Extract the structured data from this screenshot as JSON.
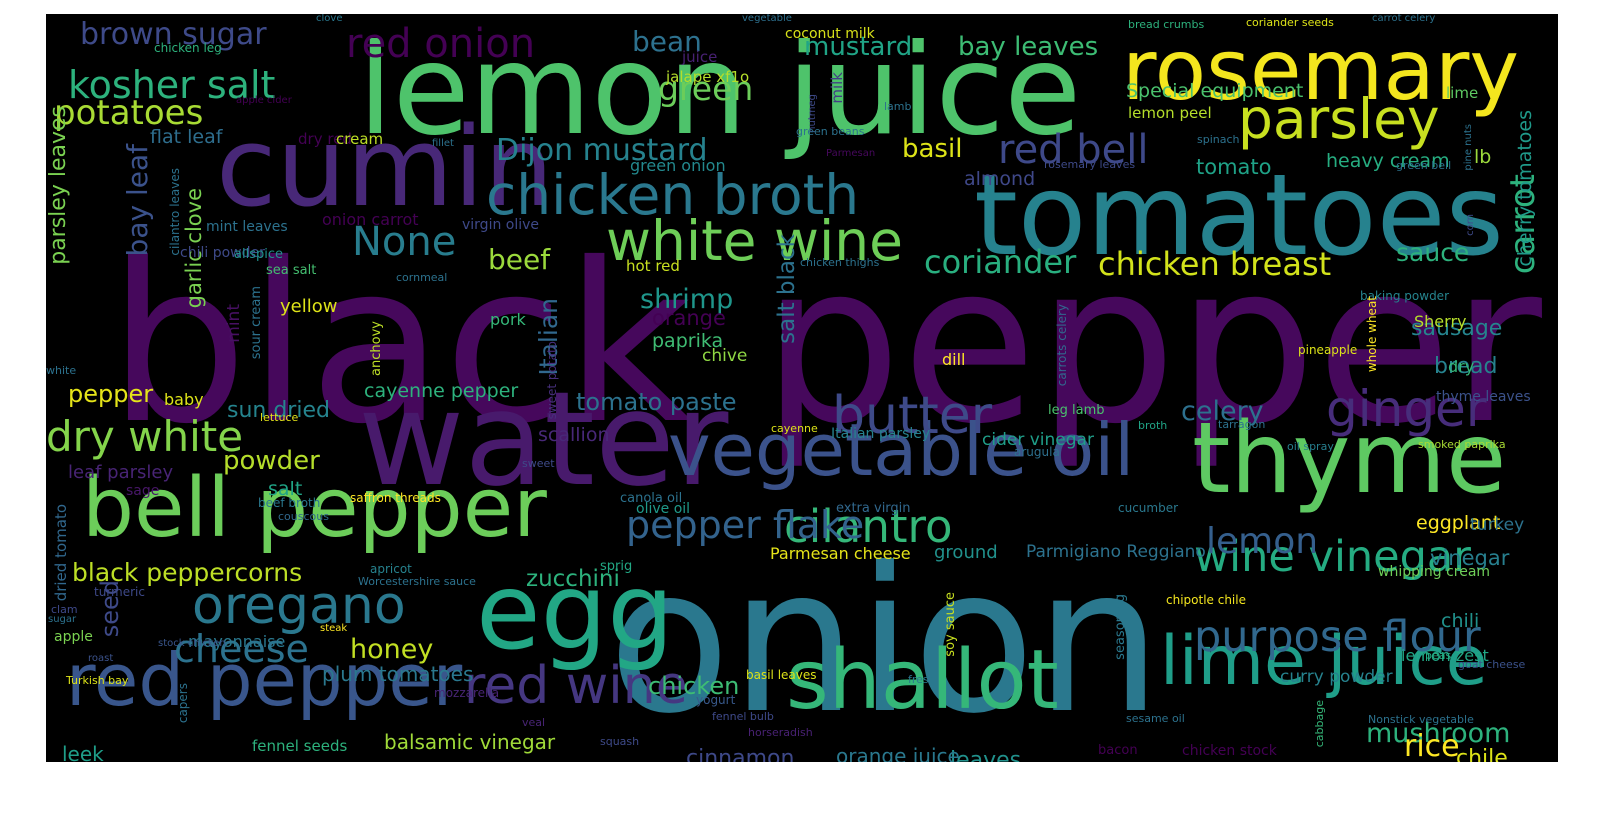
{
  "words": [
    {
      "text": "black pepper",
      "color": "#46085c",
      "vertical": false
    },
    {
      "text": "onion",
      "color": "#2a788e",
      "vertical": false
    },
    {
      "text": "water",
      "color": "#481a6c",
      "vertical": false
    },
    {
      "text": "lemon juice",
      "color": "#4ec36b",
      "vertical": false
    },
    {
      "text": "tomatoes",
      "color": "#26828e",
      "vertical": false
    },
    {
      "text": "cumin",
      "color": "#482878",
      "vertical": false
    },
    {
      "text": "egg",
      "color": "#22a785",
      "vertical": false
    },
    {
      "text": "thyme",
      "color": "#5ec962",
      "vertical": false
    },
    {
      "text": "rosemary",
      "color": "#f4e61e",
      "vertical": false
    },
    {
      "text": "bell pepper",
      "color": "#6ccd5a",
      "vertical": false
    },
    {
      "text": "shallot",
      "color": "#35b779",
      "vertical": false
    },
    {
      "text": "vegetable oil",
      "color": "#3b528b",
      "vertical": false
    },
    {
      "text": "red pepper",
      "color": "#39568c",
      "vertical": false
    },
    {
      "text": "lime juice",
      "color": "#1f9e89",
      "vertical": false
    },
    {
      "text": "chicken broth",
      "color": "#2a788e",
      "vertical": false
    },
    {
      "text": "white wine",
      "color": "#6ece58",
      "vertical": false
    },
    {
      "text": "parsley",
      "color": "#c8e020",
      "vertical": false
    },
    {
      "text": "red wine",
      "color": "#453781",
      "vertical": false
    },
    {
      "text": "oregano",
      "color": "#2a788e",
      "vertical": false
    },
    {
      "text": "butter",
      "color": "#3e4a89",
      "vertical": false
    },
    {
      "text": "ginger",
      "color": "#472d7b",
      "vertical": false
    },
    {
      "text": "cilantro",
      "color": "#35b779",
      "vertical": false
    },
    {
      "text": "purpose flour",
      "color": "#31688e",
      "vertical": false
    },
    {
      "text": "wine vinegar",
      "color": "#25ac82",
      "vertical": false
    },
    {
      "text": "dry white",
      "color": "#84d44b",
      "vertical": false
    },
    {
      "text": "red bell",
      "color": "#3e4989",
      "vertical": false
    },
    {
      "text": "red onion",
      "color": "#440154",
      "vertical": false
    },
    {
      "text": "kosher salt",
      "color": "#2db27d",
      "vertical": false
    },
    {
      "text": "cheese",
      "color": "#2c728e",
      "vertical": false
    },
    {
      "text": "pepper flake",
      "color": "#33638d",
      "vertical": false
    },
    {
      "text": "lemon",
      "color": "#355f8d",
      "vertical": false
    },
    {
      "text": "Dijon mustard",
      "color": "#26828e",
      "vertical": false
    },
    {
      "text": "None",
      "color": "#287d8e",
      "vertical": false
    },
    {
      "text": "coriander",
      "color": "#29af7f",
      "vertical": false
    },
    {
      "text": "chicken breast",
      "color": "#d2e21b",
      "vertical": false
    },
    {
      "text": "potatoes",
      "color": "#a8db34",
      "vertical": false
    },
    {
      "text": "green",
      "color": "#6ccd5a",
      "vertical": false
    },
    {
      "text": "carrot",
      "color": "#2db27d",
      "vertical": true
    },
    {
      "text": "black peppercorns",
      "color": "#bddf26",
      "vertical": false
    },
    {
      "text": "mushroom",
      "color": "#2db27d",
      "vertical": false
    },
    {
      "text": "shrimp",
      "color": "#1f968b",
      "vertical": false
    },
    {
      "text": "brown sugar",
      "color": "#3e4a89",
      "vertical": false
    },
    {
      "text": "bay leaf",
      "color": "#3b528b",
      "vertical": true
    },
    {
      "text": "rice",
      "color": "#fde725",
      "vertical": false
    },
    {
      "text": "honey",
      "color": "#c2df23",
      "vertical": false
    },
    {
      "text": "mustard",
      "color": "#20a486",
      "vertical": false
    },
    {
      "text": "bay leaves",
      "color": "#3dbc74",
      "vertical": false
    },
    {
      "text": "bean",
      "color": "#2d718e",
      "vertical": false
    },
    {
      "text": "celery",
      "color": "#2d708e",
      "vertical": false
    },
    {
      "text": "powder",
      "color": "#b5de2b",
      "vertical": false
    },
    {
      "text": "beef",
      "color": "#9bd93c",
      "vertical": false
    },
    {
      "text": "sauce",
      "color": "#2db27d",
      "vertical": false
    },
    {
      "text": "seed",
      "color": "#3e4a89",
      "vertical": true
    },
    {
      "text": "cinnamon",
      "color": "#3e4989",
      "vertical": false
    },
    {
      "text": "chicken",
      "color": "#3dbc74",
      "vertical": false
    },
    {
      "text": "tomato paste",
      "color": "#2c728e",
      "vertical": false
    },
    {
      "text": "zucchini",
      "color": "#2db27d",
      "vertical": false
    },
    {
      "text": "salt black",
      "color": "#2c728e",
      "vertical": true
    },
    {
      "text": "sausage",
      "color": "#25848e",
      "vertical": false
    },
    {
      "text": "basil",
      "color": "#dde318",
      "vertical": false
    },
    {
      "text": "pepper",
      "color": "#e5e419",
      "vertical": false
    },
    {
      "text": "leaves",
      "color": "#21918c",
      "vertical": false
    },
    {
      "text": "chile",
      "color": "#dde318",
      "vertical": false
    },
    {
      "text": "balsamic vinegar",
      "color": "#a0da39",
      "vertical": false
    },
    {
      "text": "Special equipment",
      "color": "#4ac16d",
      "vertical": false
    },
    {
      "text": "heavy cream",
      "color": "#26ad81",
      "vertical": false
    },
    {
      "text": "tomato",
      "color": "#1fa287",
      "vertical": false
    },
    {
      "text": "cherry tomatoes",
      "color": "#1f9a8a",
      "vertical": true
    },
    {
      "text": "vinegar",
      "color": "#277f8e",
      "vertical": false
    },
    {
      "text": "bread",
      "color": "#26828e",
      "vertical": false
    },
    {
      "text": "sun dried",
      "color": "#25848e",
      "vertical": false
    },
    {
      "text": "cayenne pepper",
      "color": "#2db27d",
      "vertical": false
    },
    {
      "text": "lb",
      "color": "#9bd93c",
      "vertical": false
    },
    {
      "text": "paprika",
      "color": "#3fbc73",
      "vertical": false
    },
    {
      "text": "Italian",
      "color": "#31688e",
      "vertical": true
    },
    {
      "text": "orange juice",
      "color": "#2a788e",
      "vertical": false
    },
    {
      "text": "plum tomatoes",
      "color": "#2a788e",
      "vertical": false
    },
    {
      "text": "parsley leaves",
      "color": "#7ad151",
      "vertical": true
    },
    {
      "text": "leek",
      "color": "#1f9e89",
      "vertical": false
    },
    {
      "text": "garlic clove",
      "color": "#7ad151",
      "vertical": true
    },
    {
      "text": "orange",
      "color": "#440154",
      "vertical": false
    },
    {
      "text": "eggplant",
      "color": "#fde725",
      "vertical": false
    },
    {
      "text": "leaf parsley",
      "color": "#482475",
      "vertical": false
    },
    {
      "text": "flat leaf",
      "color": "#2e6e8e",
      "vertical": false
    },
    {
      "text": "pork",
      "color": "#35b779",
      "vertical": false
    },
    {
      "text": "chili",
      "color": "#21918c",
      "vertical": false
    },
    {
      "text": "salt",
      "color": "#20a486",
      "vertical": false
    },
    {
      "text": "scallion",
      "color": "#482878",
      "vertical": false
    },
    {
      "text": "almond",
      "color": "#3f4889",
      "vertical": false
    },
    {
      "text": "yellow",
      "color": "#dde318",
      "vertical": false
    },
    {
      "text": "chive",
      "color": "#8fd744",
      "vertical": false
    },
    {
      "text": "mayonnaise",
      "color": "#2a788e",
      "vertical": false
    },
    {
      "text": "curry powder",
      "color": "#26828e",
      "vertical": false
    },
    {
      "text": "lemon zest",
      "color": "#21a685",
      "vertical": false
    },
    {
      "text": "cider vinegar",
      "color": "#1f9e89",
      "vertical": false
    },
    {
      "text": "turkey",
      "color": "#2c728e",
      "vertical": false
    },
    {
      "text": "ground",
      "color": "#21918c",
      "vertical": false
    },
    {
      "text": "Parmigiano Reggiano",
      "color": "#2c728e",
      "vertical": false
    },
    {
      "text": "Parmesan cheese",
      "color": "#e5e419",
      "vertical": false
    },
    {
      "text": "green onion",
      "color": "#23898e",
      "vertical": false
    },
    {
      "text": "dill",
      "color": "#fde725",
      "vertical": false
    },
    {
      "text": "lemon peel",
      "color": "#b5de2b",
      "vertical": false
    },
    {
      "text": "lime",
      "color": "#5ec962",
      "vertical": false
    },
    {
      "text": "Sherry",
      "color": "#b5de2b",
      "vertical": false
    },
    {
      "text": "dry",
      "color": "#35b779",
      "vertical": false
    },
    {
      "text": "thyme leaves",
      "color": "#3b528b",
      "vertical": false
    },
    {
      "text": "coconut milk",
      "color": "#d8e219",
      "vertical": false
    },
    {
      "text": "juice",
      "color": "#482173",
      "vertical": false
    },
    {
      "text": "jalape xf1o",
      "color": "#b5de2b",
      "vertical": false
    },
    {
      "text": "milk",
      "color": "#433e85",
      "vertical": true
    },
    {
      "text": "dry red",
      "color": "#440154",
      "vertical": false
    },
    {
      "text": "cream",
      "color": "#bddf26",
      "vertical": false
    },
    {
      "text": "onion carrot",
      "color": "#440154",
      "vertical": false
    },
    {
      "text": "hot red",
      "color": "#c8e020",
      "vertical": false
    },
    {
      "text": "mint",
      "color": "#471063",
      "vertical": true
    },
    {
      "text": "baby",
      "color": "#dde318",
      "vertical": false
    },
    {
      "text": "sage",
      "color": "#481769",
      "vertical": false
    },
    {
      "text": "mint leaves",
      "color": "#2c728e",
      "vertical": false
    },
    {
      "text": "cilantro leaves",
      "color": "#2c728e",
      "vertical": true
    },
    {
      "text": "chili powder",
      "color": "#3e4a89",
      "vertical": false
    },
    {
      "text": "virgin olive",
      "color": "#3e4989",
      "vertical": false
    },
    {
      "text": "allspice",
      "color": "#21918c",
      "vertical": false
    },
    {
      "text": "sea salt",
      "color": "#44bf70",
      "vertical": false
    },
    {
      "text": "cornmeal",
      "color": "#2c728e",
      "vertical": false
    },
    {
      "text": "sour cream",
      "color": "#2c728e",
      "vertical": true
    },
    {
      "text": "anchovy",
      "color": "#bddf26",
      "vertical": true
    },
    {
      "text": "sweet potato",
      "color": "#472f7d",
      "vertical": true
    },
    {
      "text": "baking powder",
      "color": "#25848e",
      "vertical": false
    },
    {
      "text": "pineapple",
      "color": "#dde318",
      "vertical": false
    },
    {
      "text": "whole wheat",
      "color": "#fde725",
      "vertical": true
    },
    {
      "text": "carrots celery",
      "color": "#31688e",
      "vertical": true
    },
    {
      "text": "leg lamb",
      "color": "#4ac16d",
      "vertical": false
    },
    {
      "text": "Italian parsley",
      "color": "#26828e",
      "vertical": false
    },
    {
      "text": "broth",
      "color": "#20a486",
      "vertical": false
    },
    {
      "text": "tarragon",
      "color": "#2c728e",
      "vertical": false
    },
    {
      "text": "oil spray",
      "color": "#277f8e",
      "vertical": false
    },
    {
      "text": "smoked paprika",
      "color": "#a8db34",
      "vertical": false
    },
    {
      "text": "arugula",
      "color": "#2d708e",
      "vertical": false
    },
    {
      "text": "extra virgin",
      "color": "#31688e",
      "vertical": false
    },
    {
      "text": "cucumber",
      "color": "#2a788e",
      "vertical": false
    },
    {
      "text": "canola oil",
      "color": "#2c728e",
      "vertical": false
    },
    {
      "text": "olive oil",
      "color": "#1f9a8a",
      "vertical": false
    },
    {
      "text": "saffron threads",
      "color": "#fde725",
      "vertical": false
    },
    {
      "text": "sweet",
      "color": "#3e4a89",
      "vertical": false
    },
    {
      "text": "beef broth",
      "color": "#2a788e",
      "vertical": false
    },
    {
      "text": "couscous",
      "color": "#31688e",
      "vertical": false
    },
    {
      "text": "dried tomato",
      "color": "#31688e",
      "vertical": true
    },
    {
      "text": "lettuce",
      "color": "#e5e419",
      "vertical": false
    },
    {
      "text": "cayenne",
      "color": "#dde318",
      "vertical": false
    },
    {
      "text": "white",
      "color": "#2c728e",
      "vertical": false
    },
    {
      "text": "turmeric",
      "color": "#3e4989",
      "vertical": false
    },
    {
      "text": "apricot",
      "color": "#26828e",
      "vertical": false
    },
    {
      "text": "sprig",
      "color": "#22a884",
      "vertical": false
    },
    {
      "text": "Worcestershire sauce",
      "color": "#2c728e",
      "vertical": false
    },
    {
      "text": "clam",
      "color": "#3e4989",
      "vertical": false
    },
    {
      "text": "sugar",
      "color": "#2c728e",
      "vertical": false
    },
    {
      "text": "apple",
      "color": "#7ad151",
      "vertical": false
    },
    {
      "text": "steak",
      "color": "#fde725",
      "vertical": false
    },
    {
      "text": "stock chicken",
      "color": "#39568c",
      "vertical": false
    },
    {
      "text": "roast",
      "color": "#3b528b",
      "vertical": false
    },
    {
      "text": "Turkish bay",
      "color": "#dde318",
      "vertical": false
    },
    {
      "text": "capers",
      "color": "#2c728e",
      "vertical": true
    },
    {
      "text": "mozzarella",
      "color": "#482475",
      "vertical": false
    },
    {
      "text": "fennel seeds",
      "color": "#2db27d",
      "vertical": false
    },
    {
      "text": "basil leaves",
      "color": "#dde318",
      "vertical": false
    },
    {
      "text": "fresh",
      "color": "#2a788e",
      "vertical": false
    },
    {
      "text": "yogurt",
      "color": "#38598c",
      "vertical": false
    },
    {
      "text": "fennel bulb",
      "color": "#3e4989",
      "vertical": false
    },
    {
      "text": "veal",
      "color": "#482475",
      "vertical": false
    },
    {
      "text": "horseradish",
      "color": "#482173",
      "vertical": false
    },
    {
      "text": "squash",
      "color": "#3e4a89",
      "vertical": false
    },
    {
      "text": "soy sauce",
      "color": "#c8e020",
      "vertical": true
    },
    {
      "text": "seasoning",
      "color": "#2a788e",
      "vertical": true
    },
    {
      "text": "chipotle chile",
      "color": "#f4e61e",
      "vertical": false
    },
    {
      "text": "peas",
      "color": "#25ac82",
      "vertical": false
    },
    {
      "text": "goat cheese",
      "color": "#3b528b",
      "vertical": false
    },
    {
      "text": "whipping cream",
      "color": "#6ece58",
      "vertical": false
    },
    {
      "text": "sesame oil",
      "color": "#2c728e",
      "vertical": false
    },
    {
      "text": "cabbage",
      "color": "#35b779",
      "vertical": true
    },
    {
      "text": "Nonstick vegetable",
      "color": "#2c728e",
      "vertical": false
    },
    {
      "text": "bacon",
      "color": "#440154",
      "vertical": false
    },
    {
      "text": "chicken stock",
      "color": "#440154",
      "vertical": false
    },
    {
      "text": "clove",
      "color": "#2a788e",
      "vertical": false
    },
    {
      "text": "vegetable",
      "color": "#2d708e",
      "vertical": false
    },
    {
      "text": "chicken leg",
      "color": "#2db27d",
      "vertical": false
    },
    {
      "text": "apple cider",
      "color": "#440154",
      "vertical": false
    },
    {
      "text": "fillet",
      "color": "#2c728e",
      "vertical": false
    },
    {
      "text": "lamb",
      "color": "#2c728e",
      "vertical": false
    },
    {
      "text": "nutmeg",
      "color": "#3e4a89",
      "vertical": true
    },
    {
      "text": "green beans",
      "color": "#2c728e",
      "vertical": false
    },
    {
      "text": "Parmesan",
      "color": "#46085c",
      "vertical": false
    },
    {
      "text": "rosemary leaves",
      "color": "#3e4a89",
      "vertical": false
    },
    {
      "text": "spinach",
      "color": "#2c728e",
      "vertical": false
    },
    {
      "text": "green bell",
      "color": "#2c728e",
      "vertical": false
    },
    {
      "text": "pine nuts",
      "color": "#2c728e",
      "vertical": true
    },
    {
      "text": "corn",
      "color": "#3e4a89",
      "vertical": true
    },
    {
      "text": "chicken thighs",
      "color": "#2c728e",
      "vertical": false
    },
    {
      "text": "bread crumbs",
      "color": "#2db27d",
      "vertical": false
    },
    {
      "text": "coriander seeds",
      "color": "#dde318",
      "vertical": false
    },
    {
      "text": "carrot celery",
      "color": "#2c728e",
      "vertical": false
    }
  ]
}
